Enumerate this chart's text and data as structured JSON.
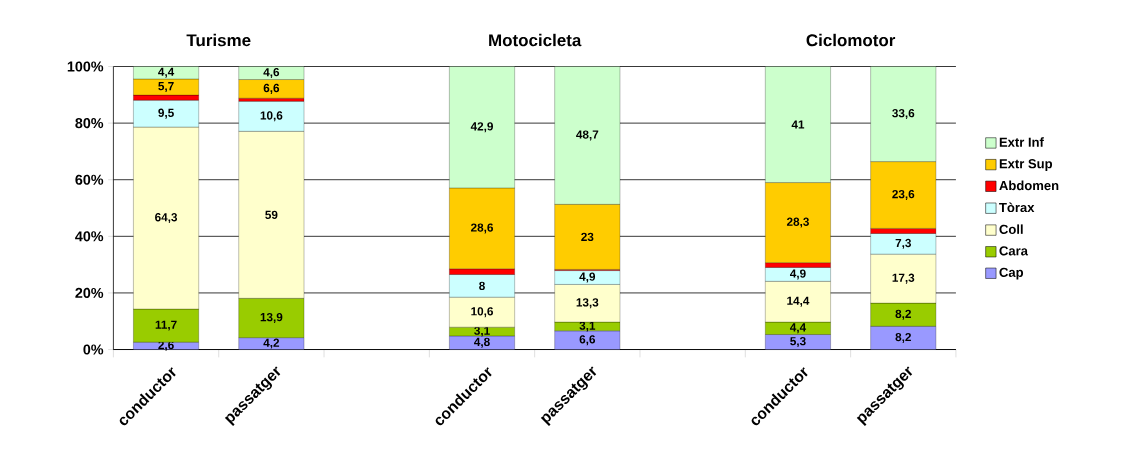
{
  "chart_data": {
    "type": "bar",
    "stacked": true,
    "categories": [
      "conductor",
      "passatger",
      null,
      "conductor",
      "passatger",
      null,
      "conductor",
      "passatger"
    ],
    "annotations": [
      "Turisme",
      "Motocicleta",
      "Ciclomotor"
    ],
    "ylim": [
      0,
      100
    ],
    "yticks": [
      {
        "value": 0,
        "label": "0%"
      },
      {
        "value": 20,
        "label": "20%"
      },
      {
        "value": 40,
        "label": "40%"
      },
      {
        "value": 60,
        "label": "60%"
      },
      {
        "value": 80,
        "label": "80%"
      },
      {
        "value": 100,
        "label": "100%"
      }
    ],
    "grid": "y",
    "legend": "right",
    "series": [
      {
        "name": "Cap",
        "color": "#9999ff",
        "values": [
          2.6,
          4.2,
          null,
          4.8,
          6.6,
          null,
          5.3,
          8.2
        ],
        "value_labels": [
          "2,6",
          "4,2",
          null,
          "4,8",
          "6,6",
          null,
          "5,3",
          "8,2"
        ]
      },
      {
        "name": "Cara",
        "color": "#99cc00",
        "values": [
          11.7,
          13.9,
          null,
          3.1,
          3.1,
          null,
          4.4,
          8.2
        ],
        "value_labels": [
          "11,7",
          "13,9",
          null,
          "3,1",
          "3,1",
          null,
          "4,4",
          "8,2"
        ]
      },
      {
        "name": "Coll",
        "color": "#ffffcc",
        "values": [
          64.3,
          59,
          null,
          10.6,
          13.3,
          null,
          14.4,
          17.3
        ],
        "value_labels": [
          "64,3",
          "59",
          null,
          "10,6",
          "13,3",
          null,
          "14,4",
          "17,3"
        ]
      },
      {
        "name": "Tòrax",
        "color": "#ccffff",
        "values": [
          9.5,
          10.6,
          null,
          8,
          4.9,
          null,
          4.9,
          7.3
        ],
        "value_labels": [
          "9,5",
          "10,6",
          null,
          "8",
          "4,9",
          null,
          "4,9",
          "7,3"
        ]
      },
      {
        "name": "Abdomen",
        "color": "#ff0000",
        "values": [
          1.8,
          1.1,
          null,
          2.0,
          0.4,
          null,
          1.7,
          1.8
        ]
      },
      {
        "name": "Extr Sup",
        "color": "#ffcc00",
        "values": [
          5.7,
          6.6,
          null,
          28.6,
          23,
          null,
          28.3,
          23.6
        ],
        "value_labels": [
          "5,7",
          "6,6",
          null,
          "28,6",
          "23",
          null,
          "28,3",
          "23,6"
        ]
      },
      {
        "name": "Extr Inf",
        "color": "#ccffcc",
        "values": [
          4.4,
          4.6,
          null,
          42.9,
          48.7,
          null,
          41,
          33.6
        ],
        "value_labels": [
          "4,4",
          "4,6",
          null,
          "42,9",
          "48,7",
          null,
          "41",
          "33,6"
        ]
      }
    ]
  }
}
